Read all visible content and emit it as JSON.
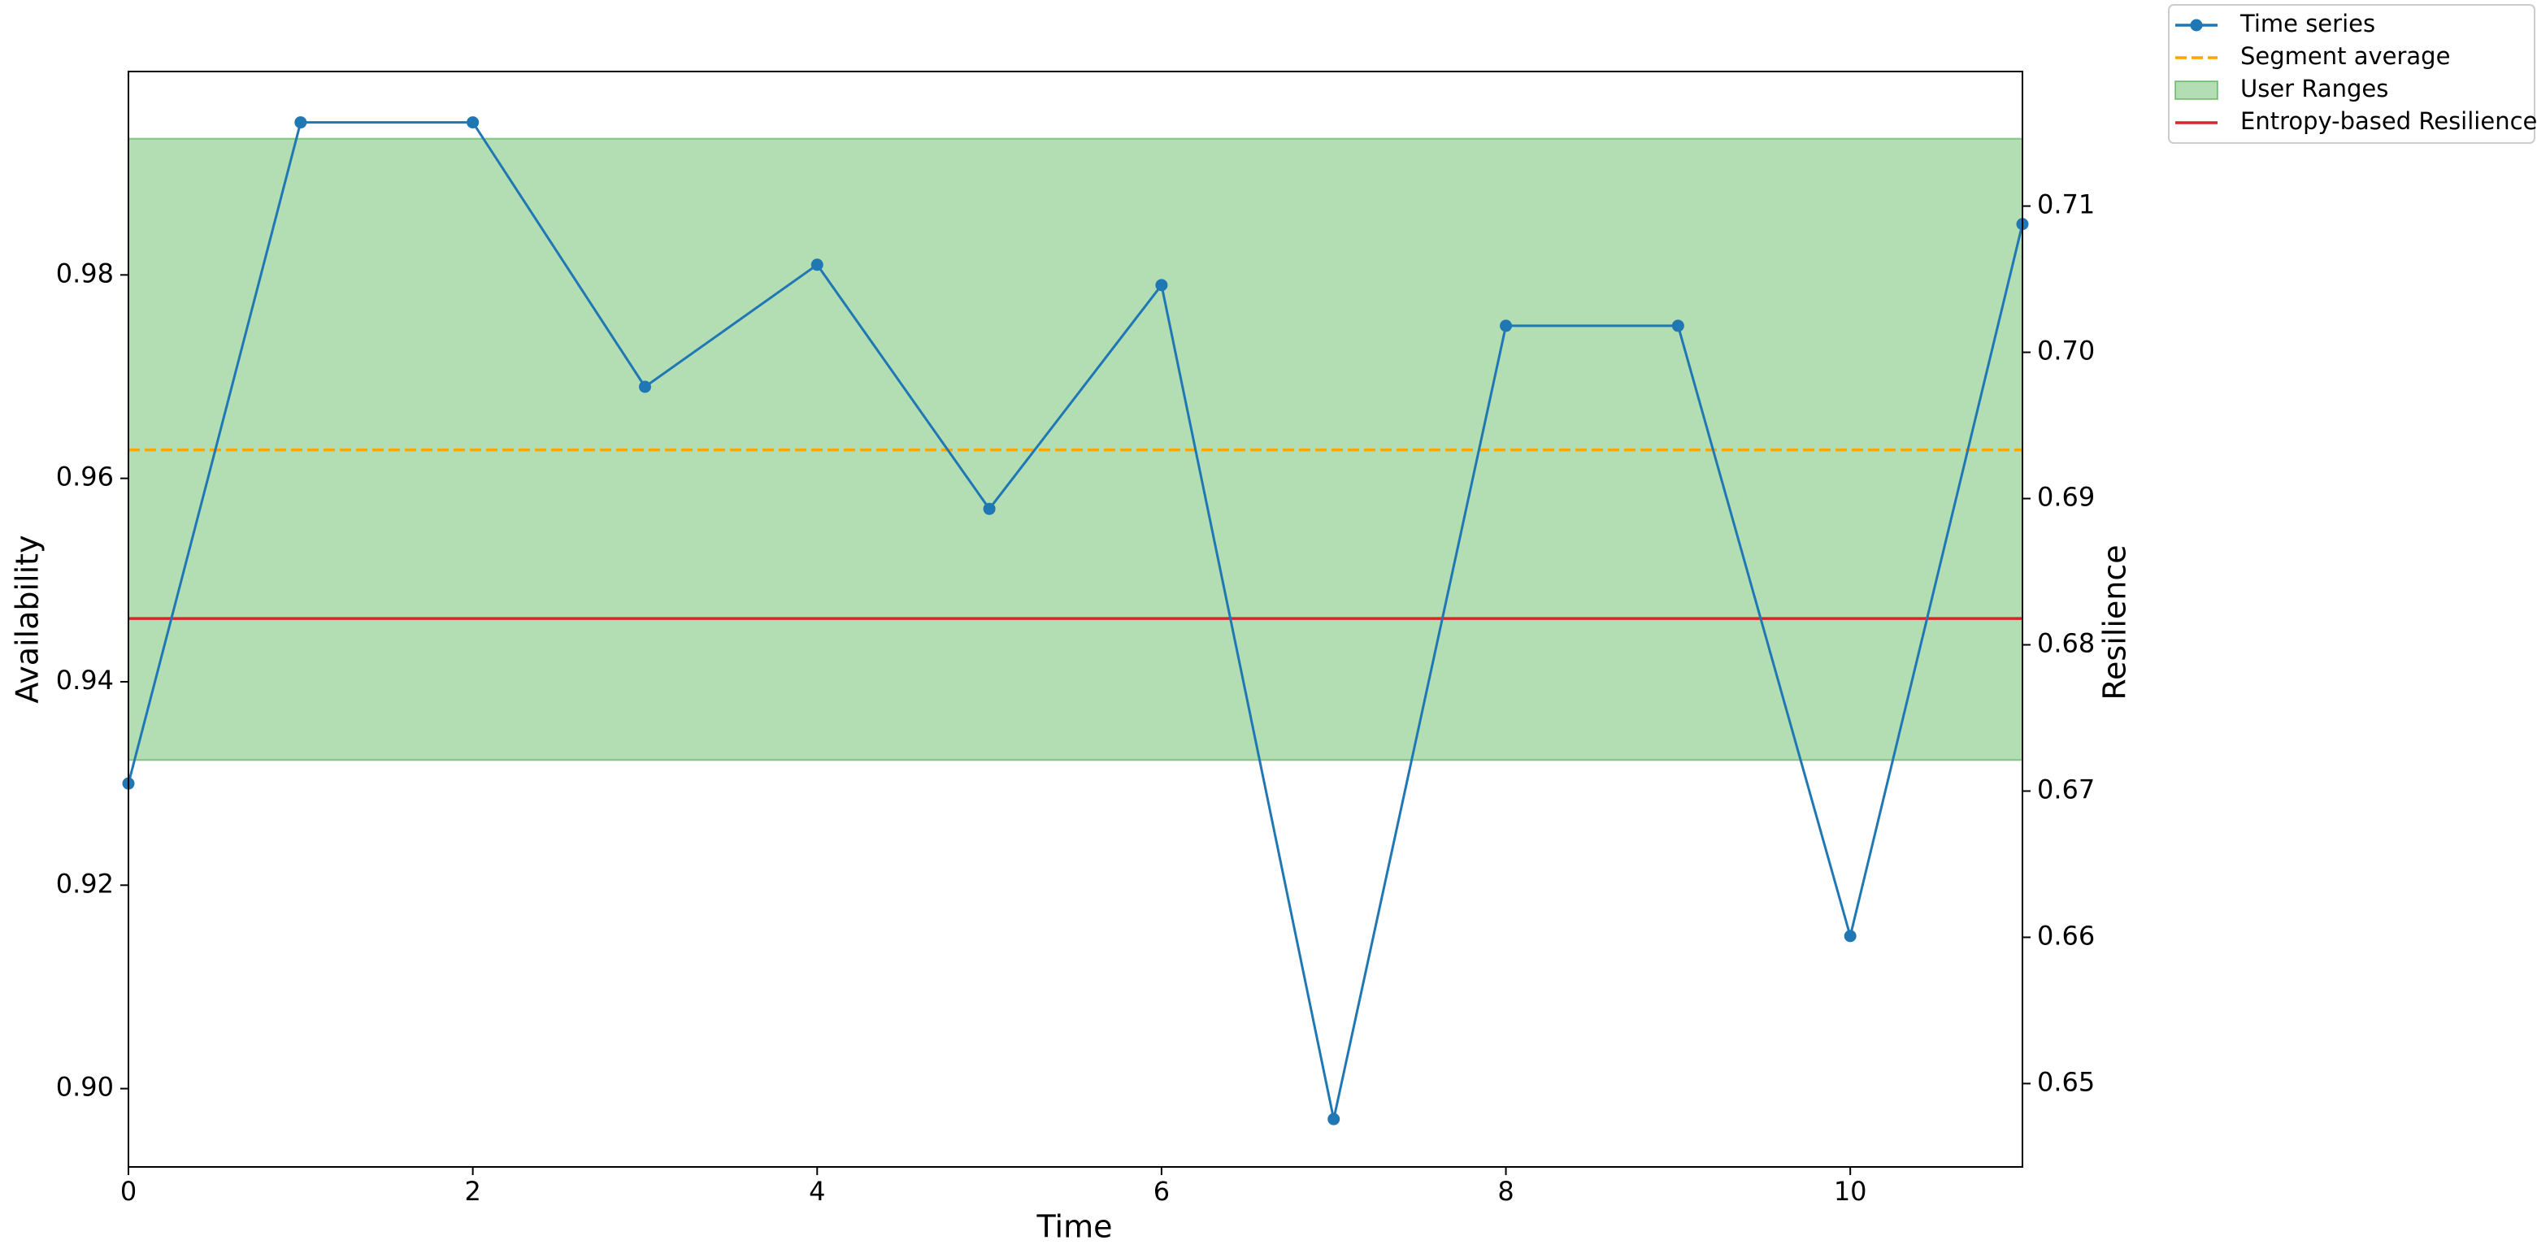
{
  "chart_data": {
    "type": "line",
    "xlabel": "Time",
    "ylabel": "Availability",
    "y2label": "Resilience",
    "x": [
      0,
      1,
      2,
      3,
      4,
      5,
      6,
      7,
      8,
      9,
      10,
      11
    ],
    "series": [
      {
        "name": "Time series",
        "color": "#1f77b4",
        "marker": "circle",
        "values": [
          0.93,
          0.995,
          0.995,
          0.969,
          0.981,
          0.957,
          0.979,
          0.897,
          0.975,
          0.975,
          0.915,
          0.985
        ]
      }
    ],
    "overlays": [
      {
        "kind": "hline",
        "name": "Segment average",
        "color": "#ffa500",
        "dash": true,
        "value": 0.9628
      },
      {
        "kind": "band",
        "name": "User Ranges",
        "color": "#2ca02c",
        "values": [
          0.9323,
          0.9934
        ]
      },
      {
        "kind": "hline",
        "name": "Entropy-based Resilience",
        "color": "#d62728",
        "dash": false,
        "axis": "y2",
        "value": 0.6818
      }
    ],
    "xlim": [
      0,
      11
    ],
    "xticks": [
      0,
      2,
      4,
      6,
      8,
      10
    ],
    "ylim": [
      0.8923,
      1.0
    ],
    "yticks": [
      {
        "value": 0.9,
        "label": "0.90"
      },
      0.92,
      0.94,
      0.96,
      0.98
    ],
    "y2lim": [
      0.6443,
      0.7192
    ],
    "y2ticks": [
      0.65,
      0.66,
      0.67,
      0.68,
      0.69,
      {
        "value": 0.7,
        "label": "0.70"
      },
      0.71
    ],
    "grid": false,
    "legend": "outside upper right"
  }
}
